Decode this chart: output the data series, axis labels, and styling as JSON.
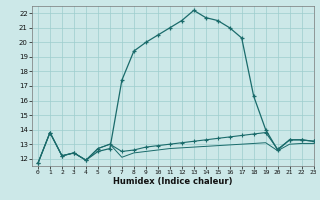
{
  "xlabel": "Humidex (Indice chaleur)",
  "bg_color": "#cce8e8",
  "grid_color": "#9ecece",
  "line_color": "#1a6b6b",
  "xlim": [
    -0.5,
    23
  ],
  "ylim": [
    11.5,
    22.5
  ],
  "yticks": [
    12,
    13,
    14,
    15,
    16,
    17,
    18,
    19,
    20,
    21,
    22
  ],
  "xticks": [
    0,
    1,
    2,
    3,
    4,
    5,
    6,
    7,
    8,
    9,
    10,
    11,
    12,
    13,
    14,
    15,
    16,
    17,
    18,
    19,
    20,
    21,
    22,
    23
  ],
  "curve1_x": [
    0,
    1,
    2,
    3,
    4,
    5,
    6,
    7,
    8,
    9,
    10,
    11,
    12,
    13,
    14,
    15,
    16,
    17,
    18,
    19,
    20,
    21,
    22,
    23
  ],
  "curve1_y": [
    11.7,
    13.8,
    12.2,
    12.4,
    11.9,
    12.5,
    12.7,
    17.4,
    19.4,
    20.0,
    20.5,
    21.0,
    21.5,
    22.2,
    21.7,
    21.5,
    21.0,
    20.3,
    16.3,
    14.0,
    12.6,
    13.3,
    13.3,
    13.2
  ],
  "curve2_x": [
    0,
    1,
    2,
    3,
    4,
    5,
    6,
    7,
    8,
    9,
    10,
    11,
    12,
    13,
    14,
    15,
    16,
    17,
    18,
    19,
    20,
    21,
    22,
    23
  ],
  "curve2_y": [
    11.7,
    13.8,
    12.2,
    12.4,
    11.9,
    12.7,
    13.0,
    12.5,
    12.6,
    12.8,
    12.9,
    13.0,
    13.1,
    13.2,
    13.3,
    13.4,
    13.5,
    13.6,
    13.7,
    13.8,
    12.65,
    13.3,
    13.3,
    13.2
  ],
  "curve3_x": [
    0,
    1,
    2,
    3,
    4,
    5,
    6,
    7,
    8,
    9,
    10,
    11,
    12,
    13,
    14,
    15,
    16,
    17,
    18,
    19,
    20,
    21,
    22,
    23
  ],
  "curve3_y": [
    11.7,
    13.8,
    12.2,
    12.4,
    11.9,
    12.7,
    13.0,
    12.1,
    12.4,
    12.5,
    12.6,
    12.7,
    12.75,
    12.8,
    12.85,
    12.9,
    12.95,
    13.0,
    13.05,
    13.1,
    12.55,
    13.0,
    13.05,
    13.05
  ]
}
